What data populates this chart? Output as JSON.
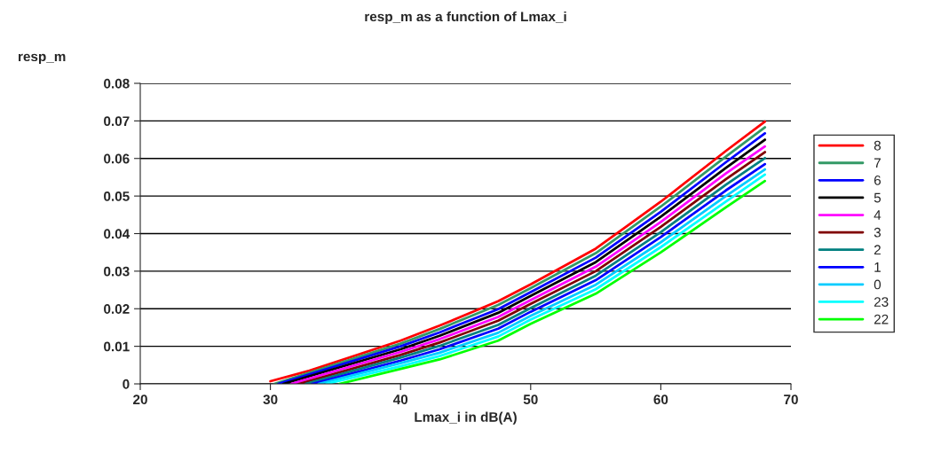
{
  "chart_data": {
    "type": "line",
    "title": "resp_m as a function of Lmax_i",
    "xlabel": "Lmax_i in dB(A)",
    "ylabel": "resp_m",
    "xlim": [
      20,
      70
    ],
    "xticks": [
      20,
      30,
      40,
      50,
      60,
      70
    ],
    "ylim": [
      0,
      0.08
    ],
    "yticks": [
      0,
      0.01,
      0.02,
      0.03,
      0.04,
      0.05,
      0.06,
      0.07,
      0.08
    ],
    "grid": "y",
    "legend": "right",
    "marker": "none",
    "line_style": "solid",
    "series": [
      {
        "name": "8",
        "color": "#ff0000",
        "x": [
          30,
          33,
          40,
          43,
          47.5,
          50,
          55,
          60,
          65,
          68
        ],
        "values": [
          0.0007,
          0.0035,
          0.0115,
          0.0155,
          0.022,
          0.0265,
          0.036,
          0.0485,
          0.062,
          0.0698
        ]
      },
      {
        "name": "7",
        "color": "#339966",
        "x": [
          30.3,
          40,
          43,
          47.5,
          50,
          55,
          60,
          65,
          68
        ],
        "values": [
          0,
          0.0107,
          0.0146,
          0.021,
          0.0255,
          0.0348,
          0.0472,
          0.0605,
          0.0683
        ]
      },
      {
        "name": "6",
        "color": "#0000ff",
        "x": [
          30.6,
          40,
          43,
          47.5,
          50,
          55,
          60,
          65,
          68
        ],
        "values": [
          0,
          0.01,
          0.0137,
          0.0199,
          0.0244,
          0.0336,
          0.0458,
          0.059,
          0.0667
        ]
      },
      {
        "name": "5",
        "color": "#000000",
        "x": [
          31,
          40,
          43,
          47.5,
          50,
          55,
          60,
          65,
          68
        ],
        "values": [
          0,
          0.0092,
          0.0128,
          0.0189,
          0.0234,
          0.0324,
          0.0445,
          0.0575,
          0.065
        ]
      },
      {
        "name": "4",
        "color": "#ff00ff",
        "x": [
          31.6,
          40,
          43,
          47.5,
          50,
          55,
          60,
          65,
          68
        ],
        "values": [
          0,
          0.0085,
          0.0119,
          0.0178,
          0.0223,
          0.0312,
          0.0431,
          0.056,
          0.0632
        ]
      },
      {
        "name": "3",
        "color": "#800000",
        "x": [
          32.2,
          40,
          43,
          47.5,
          50,
          55,
          60,
          65,
          68
        ],
        "values": [
          0,
          0.0077,
          0.011,
          0.0168,
          0.0213,
          0.03,
          0.0418,
          0.0545,
          0.0617
        ]
      },
      {
        "name": "2",
        "color": "#008080",
        "x": [
          32.7,
          40,
          43,
          47.5,
          50,
          55,
          60,
          65,
          68
        ],
        "values": [
          0,
          0.007,
          0.0101,
          0.0157,
          0.0202,
          0.0288,
          0.0404,
          0.053,
          0.0601
        ]
      },
      {
        "name": "1",
        "color": "#0000ff",
        "x": [
          33.2,
          40,
          43,
          47.5,
          50,
          55,
          60,
          65,
          68
        ],
        "values": [
          0,
          0.0062,
          0.0092,
          0.0147,
          0.0192,
          0.0276,
          0.0391,
          0.0515,
          0.0585
        ]
      },
      {
        "name": "0",
        "color": "#00ccff",
        "x": [
          33.7,
          40,
          43,
          47.5,
          50,
          55,
          60,
          65,
          68
        ],
        "values": [
          0,
          0.0055,
          0.0083,
          0.0136,
          0.0181,
          0.0264,
          0.0377,
          0.05,
          0.0571
        ]
      },
      {
        "name": "23",
        "color": "#00ffff",
        "x": [
          34.3,
          40,
          43,
          47.5,
          50,
          55,
          60,
          65,
          68
        ],
        "values": [
          0,
          0.0047,
          0.0074,
          0.0126,
          0.0171,
          0.0252,
          0.0364,
          0.0485,
          0.0557
        ]
      },
      {
        "name": "22",
        "color": "#00ff00",
        "x": [
          35.3,
          40,
          43,
          47.5,
          50,
          55,
          60,
          65,
          68
        ],
        "values": [
          0,
          0.004,
          0.0065,
          0.0115,
          0.016,
          0.024,
          0.035,
          0.047,
          0.054
        ]
      }
    ]
  }
}
